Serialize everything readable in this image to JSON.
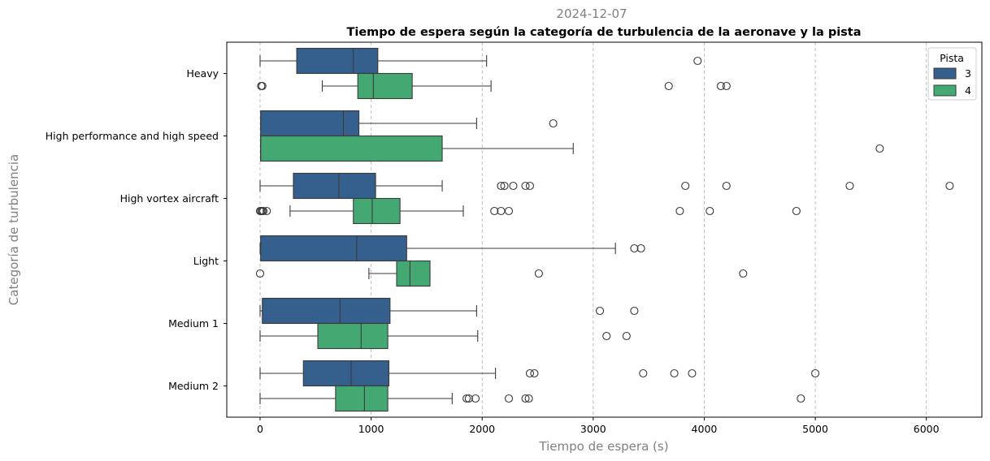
{
  "chart_data": {
    "type": "boxplot-horizontal",
    "subtitle": "2024-12-07",
    "title": "Tiempo de espera según la categoría de turbulencia de la aeronave y la pista",
    "xlabel": "Tiempo de espera (s)",
    "ylabel": "Categoría de turbulencia",
    "xlim": [
      -300,
      6500
    ],
    "xticks": [
      0,
      1000,
      2000,
      3000,
      4000,
      5000,
      6000
    ],
    "xtick_labels": [
      "0",
      "1000",
      "2000",
      "3000",
      "4000",
      "5000",
      "6000"
    ],
    "grid": "x-dashed",
    "categories": [
      "Heavy",
      "High performance and high speed",
      "High vortex aircraft",
      "Light",
      "Medium 1",
      "Medium 2"
    ],
    "legend": {
      "title": "Pista",
      "position": "top-right",
      "entries": [
        "3",
        "4"
      ]
    },
    "series": [
      {
        "name": "3",
        "color": "#355f8d",
        "boxes": [
          {
            "whislo": 0,
            "q1": 330,
            "med": 840,
            "q3": 1060,
            "whishi": 2040,
            "fliers": [
              3940
            ]
          },
          {
            "whislo": 5,
            "q1": 5,
            "med": 750,
            "q3": 890,
            "whishi": 1950,
            "fliers": [
              2640
            ]
          },
          {
            "whislo": 0,
            "q1": 300,
            "med": 710,
            "q3": 1040,
            "whishi": 1640,
            "fliers": [
              2170,
              2200,
              2280,
              2390,
              2430,
              3830,
              4200,
              5310,
              6210
            ]
          },
          {
            "whislo": 0,
            "q1": 5,
            "med": 870,
            "q3": 1320,
            "whishi": 3200,
            "fliers": [
              3370,
              3430
            ]
          },
          {
            "whislo": 0,
            "q1": 20,
            "med": 720,
            "q3": 1170,
            "whishi": 1950,
            "fliers": [
              3060,
              3370
            ]
          },
          {
            "whislo": 0,
            "q1": 390,
            "med": 820,
            "q3": 1160,
            "whishi": 2120,
            "fliers": [
              2430,
              2470,
              3450,
              3730,
              3890,
              5000
            ]
          }
        ]
      },
      {
        "name": "4",
        "color": "#44a872",
        "boxes": [
          {
            "whislo": 560,
            "q1": 880,
            "med": 1020,
            "q3": 1370,
            "whishi": 2080,
            "fliers": [
              10,
              20,
              3680,
              4150,
              4200
            ]
          },
          {
            "whislo": 5,
            "q1": 5,
            "med": 5,
            "q3": 1640,
            "whishi": 2820,
            "fliers": [
              5580
            ]
          },
          {
            "whislo": 270,
            "q1": 840,
            "med": 1010,
            "q3": 1260,
            "whishi": 1830,
            "fliers": [
              0,
              10,
              20,
              30,
              60,
              2110,
              2170,
              2240,
              3780,
              4050,
              4830
            ]
          },
          {
            "whislo": 980,
            "q1": 1230,
            "med": 1350,
            "q3": 1530,
            "whishi": 1530,
            "fliers": [
              0,
              2510,
              4350
            ]
          },
          {
            "whislo": 0,
            "q1": 520,
            "med": 910,
            "q3": 1150,
            "whishi": 1960,
            "fliers": [
              3120,
              3300
            ]
          },
          {
            "whislo": 0,
            "q1": 680,
            "med": 940,
            "q3": 1150,
            "whishi": 1730,
            "fliers": [
              1860,
              1880,
              1940,
              2240,
              2390,
              2420,
              4870
            ]
          }
        ]
      }
    ]
  }
}
